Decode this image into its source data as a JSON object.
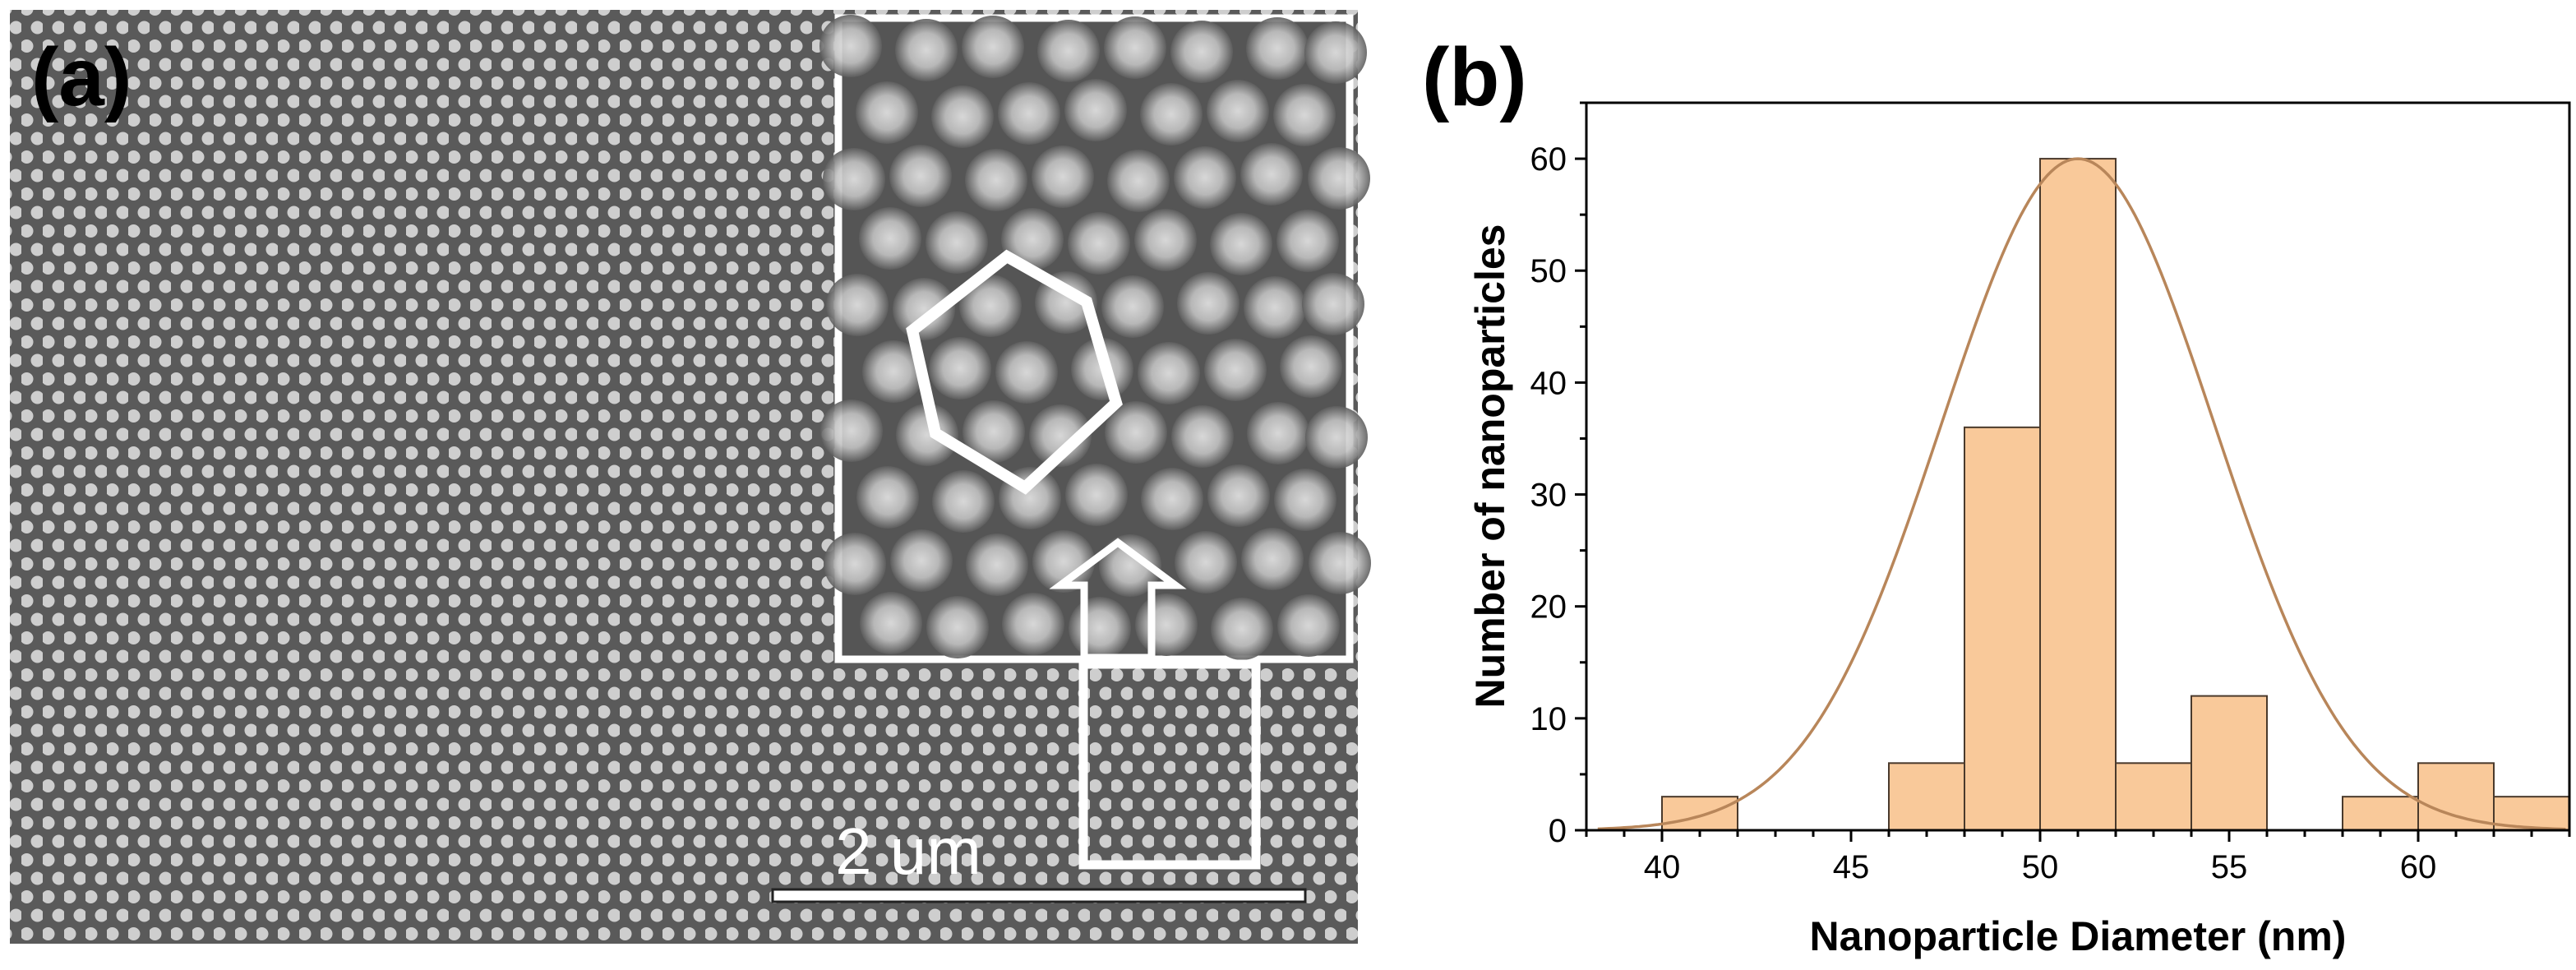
{
  "panels": {
    "a": {
      "label": "(a)",
      "scale_bar": {
        "text": "2 um"
      }
    },
    "b": {
      "label": "(b)"
    }
  },
  "colors": {
    "bar_fill": "#f9c99a",
    "bar_stroke": "#4a3a2c",
    "fit_curve": "#b8865a",
    "sem_background": "#5a5a5a",
    "sem_particle": "#d6d6d6",
    "inset_annotation": "#ffffff"
  },
  "chart_data": {
    "type": "bar",
    "title": "",
    "xlabel": "Nanoparticle Diameter (nm)",
    "ylabel": "Number of nanoparticles",
    "xlim": [
      38,
      64
    ],
    "ylim": [
      0,
      65
    ],
    "bin_width": 2,
    "xticks": [
      40,
      45,
      50,
      55,
      60
    ],
    "yticks": [
      0,
      10,
      20,
      30,
      40,
      50,
      60
    ],
    "bins": [
      {
        "start": 40,
        "end": 42,
        "value": 3
      },
      {
        "start": 46,
        "end": 48,
        "value": 6
      },
      {
        "start": 48,
        "end": 50,
        "value": 36
      },
      {
        "start": 50,
        "end": 52,
        "value": 60
      },
      {
        "start": 52,
        "end": 54,
        "value": 6
      },
      {
        "start": 54,
        "end": 56,
        "value": 12
      },
      {
        "start": 58,
        "end": 60,
        "value": 3
      },
      {
        "start": 60,
        "end": 62,
        "value": 6
      },
      {
        "start": 62,
        "end": 64,
        "value": 3
      }
    ],
    "fit": {
      "type": "gaussian",
      "mean": 51,
      "sigma": 3.6,
      "amplitude": 60
    }
  }
}
